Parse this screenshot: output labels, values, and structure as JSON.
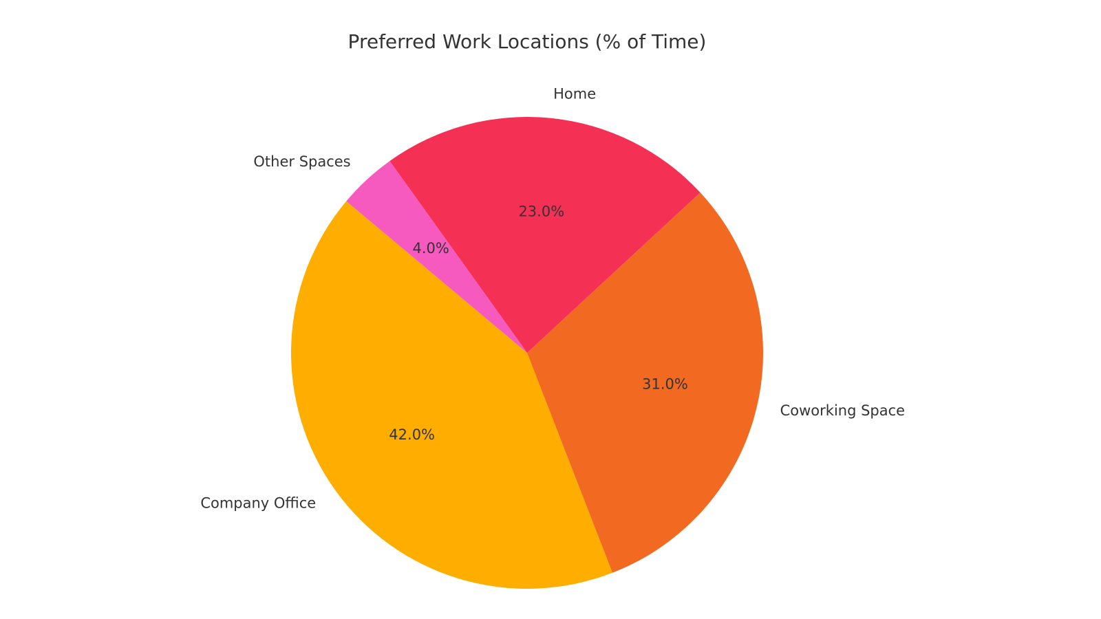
{
  "chart_data": {
    "type": "pie",
    "title": "Preferred Work Locations (% of Time)",
    "categories": [
      "Company Office",
      "Coworking Space",
      "Home",
      "Other Spaces"
    ],
    "values": [
      42.0,
      31.0,
      23.0,
      4.0
    ],
    "percent_labels": [
      "42.0%",
      "31.0%",
      "23.0%",
      "4.0%"
    ],
    "colors": [
      "#FFAE00",
      "#F26A22",
      "#F43155",
      "#F75ABF"
    ],
    "start_angle_deg": 140,
    "direction": "counterclockwise",
    "legend": "none"
  }
}
